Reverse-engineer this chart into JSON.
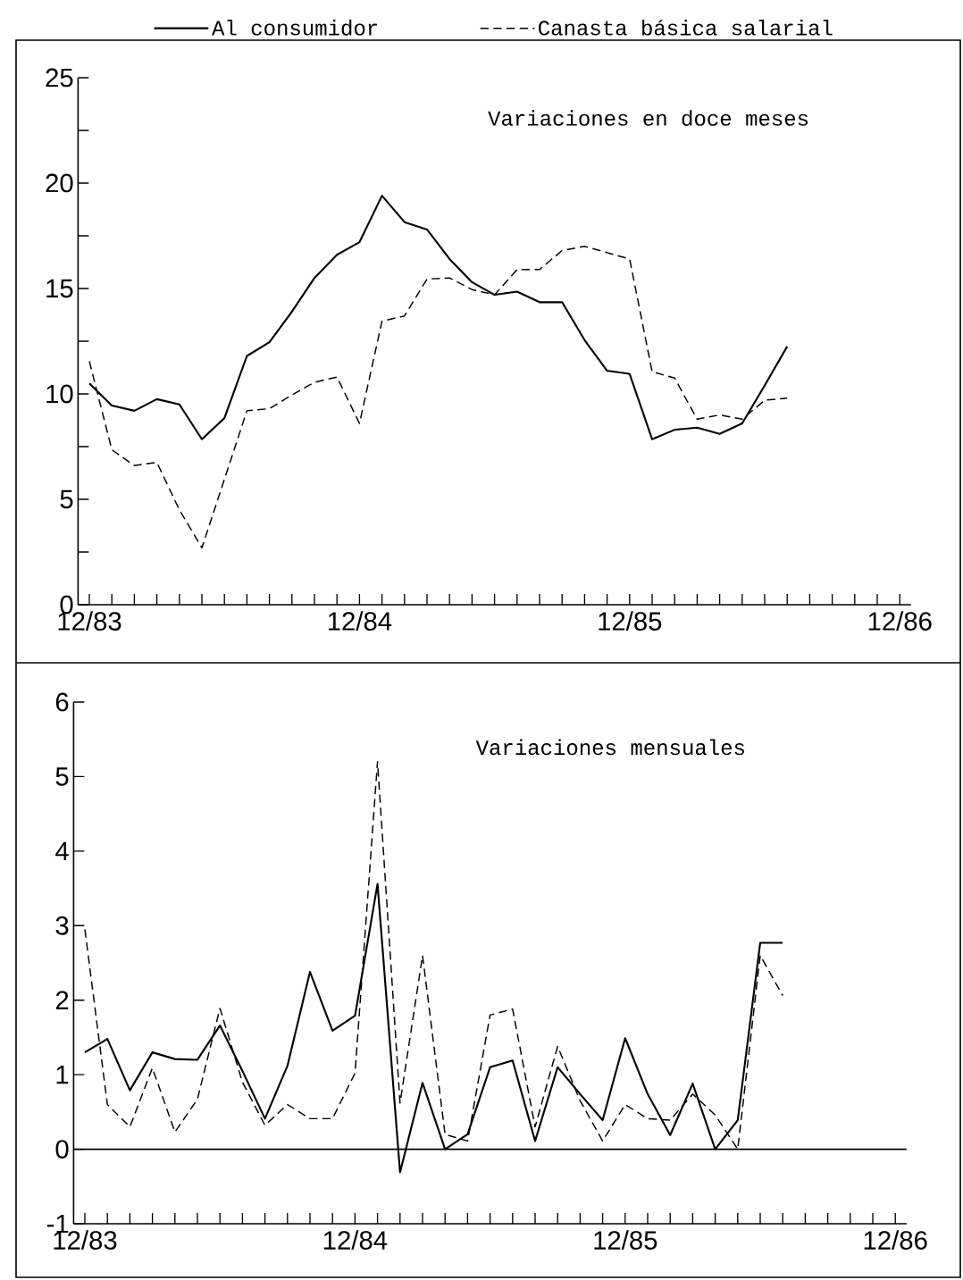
{
  "chart_data": [
    {
      "type": "line",
      "title": "Variaciones en doce meses",
      "legend": "top",
      "x": [
        "1983-12",
        "1984-01",
        "1984-02",
        "1984-03",
        "1984-04",
        "1984-05",
        "1984-06",
        "1984-07",
        "1984-08",
        "1984-09",
        "1984-10",
        "1984-11",
        "1984-12",
        "1985-01",
        "1985-02",
        "1985-03",
        "1985-04",
        "1985-05",
        "1985-06",
        "1985-07",
        "1985-08",
        "1985-09",
        "1985-10",
        "1985-11",
        "1985-12",
        "1986-01",
        "1986-02",
        "1986-03",
        "1986-04",
        "1986-05",
        "1986-06",
        "1986-07"
      ],
      "xlim": [
        "1983-11-16",
        "1986-12-16"
      ],
      "xticks": [
        {
          "value": "1983-12",
          "label": "12/83"
        },
        {
          "value": "1984-01",
          "label": null
        },
        {
          "value": "1984-02",
          "label": null
        },
        {
          "value": "1984-03",
          "label": null
        },
        {
          "value": "1984-04",
          "label": null
        },
        {
          "value": "1984-05",
          "label": null
        },
        {
          "value": "1984-06",
          "label": null
        },
        {
          "value": "1984-07",
          "label": null
        },
        {
          "value": "1984-08",
          "label": null
        },
        {
          "value": "1984-09",
          "label": null
        },
        {
          "value": "1984-10",
          "label": null
        },
        {
          "value": "1984-11",
          "label": null
        },
        {
          "value": "1984-12",
          "label": "12/84"
        },
        {
          "value": "1985-01",
          "label": null
        },
        {
          "value": "1985-02",
          "label": null
        },
        {
          "value": "1985-03",
          "label": null
        },
        {
          "value": "1985-04",
          "label": null
        },
        {
          "value": "1985-05",
          "label": null
        },
        {
          "value": "1985-06",
          "label": null
        },
        {
          "value": "1985-07",
          "label": null
        },
        {
          "value": "1985-08",
          "label": null
        },
        {
          "value": "1985-09",
          "label": null
        },
        {
          "value": "1985-10",
          "label": null
        },
        {
          "value": "1985-11",
          "label": null
        },
        {
          "value": "1985-12",
          "label": "12/85"
        },
        {
          "value": "1986-01",
          "label": null
        },
        {
          "value": "1986-02",
          "label": null
        },
        {
          "value": "1986-03",
          "label": null
        },
        {
          "value": "1986-04",
          "label": null
        },
        {
          "value": "1986-05",
          "label": null
        },
        {
          "value": "1986-06",
          "label": null
        },
        {
          "value": "1986-07",
          "label": null
        },
        {
          "value": "1986-08",
          "label": null
        },
        {
          "value": "1986-09",
          "label": null
        },
        {
          "value": "1986-10",
          "label": null
        },
        {
          "value": "1986-11",
          "label": null
        },
        {
          "value": "1986-12",
          "label": "12/86"
        }
      ],
      "ylim": [
        0,
        25
      ],
      "yticks": [
        0,
        {
          "value": 2.5,
          "label": null
        },
        5,
        {
          "value": 7.5,
          "label": null
        },
        10,
        {
          "value": 12.5,
          "label": null
        },
        15,
        {
          "value": 17.5,
          "label": null
        },
        20,
        {
          "value": 22.5,
          "label": null
        },
        25
      ],
      "series": [
        {
          "name": "Al consumidor",
          "color": "#000000",
          "line_style": "solid",
          "values": [
            10.5,
            9.45,
            9.2,
            9.75,
            9.5,
            7.85,
            8.85,
            11.8,
            12.45,
            13.9,
            15.5,
            16.6,
            17.2,
            19.4,
            18.15,
            17.8,
            16.4,
            15.3,
            14.7,
            14.85,
            14.35,
            14.35,
            12.55,
            11.1,
            10.95,
            7.85,
            8.3,
            8.4,
            8.1,
            8.6,
            10.4,
            12.25
          ]
        },
        {
          "name": "Canasta básica salarial",
          "color": "#000000",
          "line_style": "dashed",
          "values": [
            11.55,
            7.35,
            6.6,
            6.75,
            4.5,
            2.7,
            5.95,
            9.2,
            9.3,
            9.95,
            10.55,
            10.8,
            8.6,
            13.45,
            13.7,
            15.45,
            15.5,
            14.95,
            14.7,
            15.9,
            15.9,
            16.8,
            17.0,
            16.7,
            16.4,
            11.05,
            10.75,
            8.8,
            9.0,
            8.8,
            9.7,
            9.8
          ]
        }
      ]
    },
    {
      "type": "line",
      "title": "Variaciones mensuales",
      "x": [
        "1983-12",
        "1984-01",
        "1984-02",
        "1984-03",
        "1984-04",
        "1984-05",
        "1984-06",
        "1984-07",
        "1984-08",
        "1984-09",
        "1984-10",
        "1984-11",
        "1984-12",
        "1985-01",
        "1985-02",
        "1985-03",
        "1985-04",
        "1985-05",
        "1985-06",
        "1985-07",
        "1985-08",
        "1985-09",
        "1985-10",
        "1985-11",
        "1985-12",
        "1986-01",
        "1986-02",
        "1986-03",
        "1986-04",
        "1986-05",
        "1986-06",
        "1986-07"
      ],
      "xlim": [
        "1983-11-16",
        "1986-12-16"
      ],
      "xticks": [
        {
          "value": "1983-12",
          "label": "12/83"
        },
        {
          "value": "1984-01",
          "label": null
        },
        {
          "value": "1984-02",
          "label": null
        },
        {
          "value": "1984-03",
          "label": null
        },
        {
          "value": "1984-04",
          "label": null
        },
        {
          "value": "1984-05",
          "label": null
        },
        {
          "value": "1984-06",
          "label": null
        },
        {
          "value": "1984-07",
          "label": null
        },
        {
          "value": "1984-08",
          "label": null
        },
        {
          "value": "1984-09",
          "label": null
        },
        {
          "value": "1984-10",
          "label": null
        },
        {
          "value": "1984-11",
          "label": null
        },
        {
          "value": "1984-12",
          "label": "12/84"
        },
        {
          "value": "1985-01",
          "label": null
        },
        {
          "value": "1985-02",
          "label": null
        },
        {
          "value": "1985-03",
          "label": null
        },
        {
          "value": "1985-04",
          "label": null
        },
        {
          "value": "1985-05",
          "label": null
        },
        {
          "value": "1985-06",
          "label": null
        },
        {
          "value": "1985-07",
          "label": null
        },
        {
          "value": "1985-08",
          "label": null
        },
        {
          "value": "1985-09",
          "label": null
        },
        {
          "value": "1985-10",
          "label": null
        },
        {
          "value": "1985-11",
          "label": null
        },
        {
          "value": "1985-12",
          "label": "12/85"
        },
        {
          "value": "1986-01",
          "label": null
        },
        {
          "value": "1986-02",
          "label": null
        },
        {
          "value": "1986-03",
          "label": null
        },
        {
          "value": "1986-04",
          "label": null
        },
        {
          "value": "1986-05",
          "label": null
        },
        {
          "value": "1986-06",
          "label": null
        },
        {
          "value": "1986-07",
          "label": null
        },
        {
          "value": "1986-08",
          "label": null
        },
        {
          "value": "1986-09",
          "label": null
        },
        {
          "value": "1986-10",
          "label": null
        },
        {
          "value": "1986-11",
          "label": null
        },
        {
          "value": "1986-12",
          "label": "12/86"
        }
      ],
      "ylim": [
        -1,
        6
      ],
      "yticks": [
        -1,
        0,
        1,
        2,
        3,
        4,
        5,
        6
      ],
      "ref_lines": [
        {
          "axis": "y",
          "value": 0
        }
      ],
      "series": [
        {
          "color": "#000000",
          "line_style": "solid",
          "values": [
            1.3,
            1.48,
            0.79,
            1.3,
            1.21,
            1.2,
            1.66,
            1.05,
            0.41,
            1.12,
            2.38,
            1.59,
            1.79,
            3.56,
            -0.31,
            0.89,
            0.0,
            0.2,
            1.1,
            1.19,
            0.11,
            1.1,
            0.74,
            0.39,
            1.49,
            0.74,
            0.19,
            0.88,
            0.0,
            0.39,
            2.77,
            2.77
          ]
        },
        {
          "color": "#000000",
          "line_style": "dashed",
          "values": [
            2.95,
            0.6,
            0.3,
            1.09,
            0.23,
            0.67,
            1.89,
            0.9,
            0.32,
            0.6,
            0.41,
            0.41,
            1.02,
            5.2,
            0.62,
            2.6,
            0.2,
            0.11,
            1.8,
            1.88,
            0.3,
            1.38,
            0.65,
            0.11,
            0.6,
            0.41,
            0.39,
            0.74,
            0.46,
            0.0,
            2.6,
            2.06
          ]
        }
      ]
    }
  ]
}
